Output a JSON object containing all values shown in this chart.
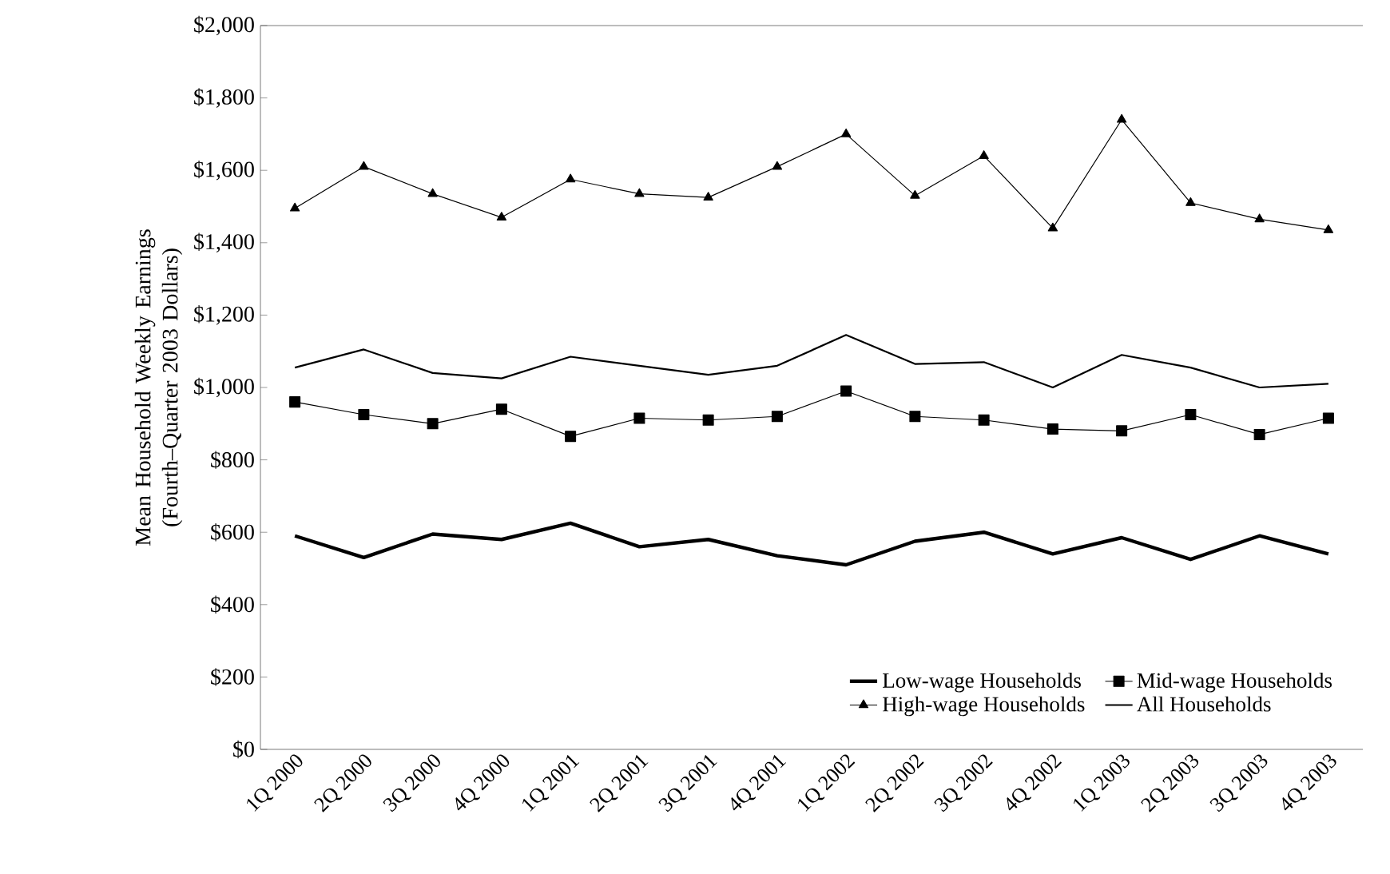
{
  "chart_data": {
    "type": "line",
    "ylabel": "Mean Household Weekly Earnings (Fourth–Quarter 2003 Dollars)",
    "categories": [
      "1Q 2000",
      "2Q 2000",
      "3Q 2000",
      "4Q 2000",
      "1Q 2001",
      "2Q 2001",
      "3Q 2001",
      "4Q 2001",
      "1Q 2002",
      "2Q 2002",
      "3Q 2002",
      "4Q 2002",
      "1Q 2003",
      "2Q 2003",
      "3Q 2003",
      "4Q 2003"
    ],
    "series": [
      {
        "name": "Low-wage Households",
        "color": "#000000",
        "marker": "none",
        "values": [
          590,
          530,
          595,
          580,
          625,
          560,
          580,
          535,
          510,
          575,
          600,
          540,
          585,
          525,
          590,
          540
        ]
      },
      {
        "name": "Mid-wage Households",
        "color": "#000000",
        "marker": "square",
        "values": [
          960,
          925,
          900,
          940,
          865,
          915,
          910,
          920,
          990,
          920,
          910,
          885,
          880,
          925,
          870,
          915
        ]
      },
      {
        "name": "High-wage Households",
        "color": "#000000",
        "marker": "triangle",
        "values": [
          1495,
          1610,
          1535,
          1470,
          1575,
          1535,
          1525,
          1610,
          1700,
          1530,
          1640,
          1440,
          1740,
          1510,
          1465,
          1435
        ]
      },
      {
        "name": "All Households",
        "color": "#000000",
        "marker": "none",
        "values": [
          1055,
          1105,
          1040,
          1025,
          1085,
          1060,
          1035,
          1060,
          1145,
          1065,
          1070,
          1000,
          1090,
          1055,
          1000,
          1010
        ]
      }
    ],
    "ylim": [
      0,
      2000
    ],
    "yticks": [
      {
        "value": 0,
        "label": "$0"
      },
      {
        "value": 200,
        "label": "$200"
      },
      {
        "value": 400,
        "label": "$400"
      },
      {
        "value": 600,
        "label": "$600"
      },
      {
        "value": 800,
        "label": "$800"
      },
      {
        "value": 1000,
        "label": "$1,000"
      },
      {
        "value": 1200,
        "label": "$1,200"
      },
      {
        "value": 1400,
        "label": "$1,400"
      },
      {
        "value": 1600,
        "label": "$1,600"
      },
      {
        "value": 1800,
        "label": "$1,800"
      },
      {
        "value": 2000,
        "label": "$2,000"
      }
    ],
    "grid": false,
    "legend": "bottom right",
    "line_style": "solid"
  }
}
